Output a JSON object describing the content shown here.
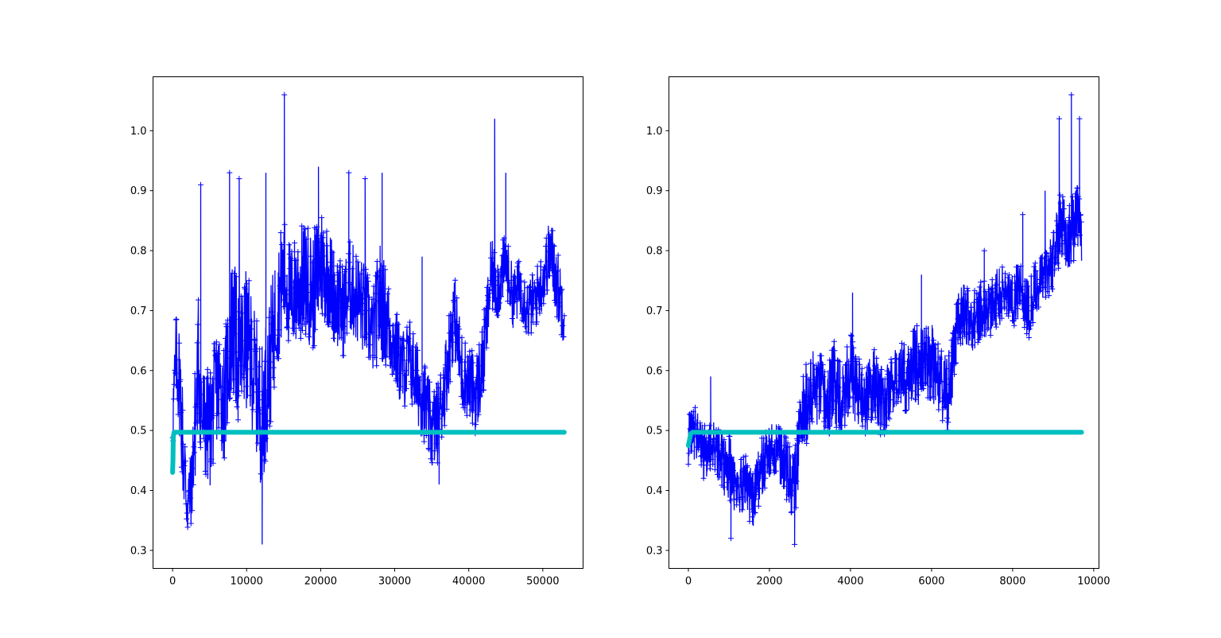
{
  "colors": {
    "series_color": "#0000ff",
    "reference_color": "#00bfbf",
    "axes_color": "#000000",
    "background": "#ffffff"
  },
  "chart_data": [
    {
      "type": "line",
      "title": "",
      "xlabel": "",
      "ylabel": "",
      "xlim": [
        -2640,
        55440
      ],
      "ylim": [
        0.27,
        1.09
      ],
      "grid": false,
      "xticks": [
        0,
        10000,
        20000,
        30000,
        40000,
        50000
      ],
      "xtick_labels": [
        "0",
        "10000",
        "20000",
        "30000",
        "40000",
        "50000"
      ],
      "yticks": [
        0.3,
        0.4,
        0.5,
        0.6,
        0.7,
        0.8,
        0.9,
        1.0
      ],
      "ytick_labels": [
        "0.3",
        "0.4",
        "0.5",
        "0.6",
        "0.7",
        "0.8",
        "0.9",
        "1.0"
      ],
      "series": [
        {
          "style": "line-with-plus-markers",
          "color": "#0000ff",
          "x": [
            0,
            500,
            1000,
            1500,
            2000,
            2500,
            3000,
            3500,
            4000,
            5000,
            6000,
            7000,
            8000,
            9000,
            10000,
            11000,
            12000,
            13000,
            14000,
            15000,
            16000,
            17000,
            18000,
            19000,
            20000,
            21000,
            22000,
            23000,
            24000,
            25000,
            26000,
            27000,
            28000,
            29000,
            30000,
            31000,
            32000,
            33000,
            34000,
            35000,
            36000,
            37000,
            38000,
            39000,
            40000,
            41000,
            42000,
            43000,
            44000,
            45000,
            46000,
            47000,
            48000,
            49000,
            50000,
            51000,
            52000,
            52900
          ],
          "y": [
            0.52,
            0.62,
            0.58,
            0.45,
            0.38,
            0.4,
            0.5,
            0.62,
            0.52,
            0.5,
            0.58,
            0.55,
            0.68,
            0.62,
            0.65,
            0.6,
            0.52,
            0.6,
            0.7,
            0.76,
            0.72,
            0.74,
            0.75,
            0.73,
            0.78,
            0.76,
            0.72,
            0.7,
            0.74,
            0.72,
            0.7,
            0.66,
            0.72,
            0.68,
            0.64,
            0.6,
            0.62,
            0.58,
            0.55,
            0.5,
            0.52,
            0.6,
            0.7,
            0.6,
            0.58,
            0.56,
            0.62,
            0.76,
            0.74,
            0.78,
            0.72,
            0.74,
            0.7,
            0.72,
            0.75,
            0.8,
            0.74,
            0.7
          ],
          "spread": [
            0.07,
            0.08,
            0.1,
            0.1,
            0.07,
            0.06,
            0.1,
            0.12,
            0.1,
            0.1,
            0.1,
            0.1,
            0.12,
            0.12,
            0.12,
            0.11,
            0.12,
            0.12,
            0.1,
            0.1,
            0.09,
            0.1,
            0.1,
            0.1,
            0.1,
            0.09,
            0.08,
            0.08,
            0.08,
            0.08,
            0.08,
            0.07,
            0.1,
            0.08,
            0.07,
            0.07,
            0.07,
            0.07,
            0.07,
            0.07,
            0.07,
            0.07,
            0.07,
            0.07,
            0.06,
            0.07,
            0.07,
            0.06,
            0.06,
            0.05,
            0.05,
            0.05,
            0.05,
            0.05,
            0.05,
            0.06,
            0.06,
            0.06
          ],
          "spikes": [
            [
              3800,
              0.91
            ],
            [
              7700,
              0.93
            ],
            [
              9000,
              0.92
            ],
            [
              12100,
              0.31
            ],
            [
              12600,
              0.93
            ],
            [
              15100,
              1.06
            ],
            [
              19700,
              0.94
            ],
            [
              23800,
              0.93
            ],
            [
              26000,
              0.92
            ],
            [
              28300,
              0.93
            ],
            [
              33700,
              0.79
            ],
            [
              36000,
              0.41
            ],
            [
              43500,
              1.02
            ],
            [
              45000,
              0.93
            ]
          ]
        },
        {
          "style": "thick-line",
          "color": "#00bfbf",
          "x": [
            0,
            50,
            100,
            200,
            500,
            52900
          ],
          "y": [
            0.43,
            0.45,
            0.49,
            0.497,
            0.497,
            0.497
          ]
        }
      ]
    },
    {
      "type": "line",
      "title": "",
      "xlabel": "",
      "ylabel": "",
      "xlim": [
        -480,
        10130
      ],
      "ylim": [
        0.27,
        1.09
      ],
      "grid": false,
      "xticks": [
        0,
        2000,
        4000,
        6000,
        8000,
        10000
      ],
      "xtick_labels": [
        "0",
        "2000",
        "4000",
        "6000",
        "8000",
        "10000"
      ],
      "yticks": [
        0.3,
        0.4,
        0.5,
        0.6,
        0.7,
        0.8,
        0.9,
        1.0
      ],
      "ytick_labels": [
        "0.3",
        "0.4",
        "0.5",
        "0.6",
        "0.7",
        "0.8",
        "0.9",
        "1.0"
      ],
      "series": [
        {
          "style": "line-with-plus-markers",
          "color": "#0000ff",
          "x": [
            0,
            200,
            400,
            600,
            800,
            1000,
            1200,
            1400,
            1600,
            1800,
            2000,
            2200,
            2400,
            2600,
            2800,
            3000,
            3200,
            3400,
            3600,
            3800,
            4000,
            4200,
            4400,
            4600,
            4800,
            5000,
            5200,
            5400,
            5600,
            5800,
            6000,
            6200,
            6400,
            6600,
            6800,
            7000,
            7200,
            7400,
            7600,
            7800,
            8000,
            8200,
            8400,
            8600,
            8800,
            9000,
            9200,
            9400,
            9600,
            9700
          ],
          "y": [
            0.48,
            0.5,
            0.46,
            0.48,
            0.45,
            0.44,
            0.4,
            0.42,
            0.38,
            0.44,
            0.46,
            0.47,
            0.44,
            0.4,
            0.52,
            0.56,
            0.57,
            0.54,
            0.58,
            0.56,
            0.6,
            0.56,
            0.55,
            0.58,
            0.54,
            0.57,
            0.6,
            0.58,
            0.62,
            0.6,
            0.62,
            0.58,
            0.55,
            0.66,
            0.7,
            0.68,
            0.7,
            0.7,
            0.72,
            0.73,
            0.72,
            0.74,
            0.7,
            0.74,
            0.76,
            0.78,
            0.85,
            0.82,
            0.86,
            0.84
          ],
          "spread": [
            0.05,
            0.05,
            0.05,
            0.05,
            0.05,
            0.06,
            0.05,
            0.05,
            0.05,
            0.05,
            0.05,
            0.05,
            0.05,
            0.06,
            0.07,
            0.07,
            0.07,
            0.07,
            0.07,
            0.07,
            0.07,
            0.06,
            0.06,
            0.06,
            0.06,
            0.05,
            0.05,
            0.06,
            0.07,
            0.07,
            0.07,
            0.06,
            0.07,
            0.06,
            0.05,
            0.05,
            0.05,
            0.05,
            0.05,
            0.05,
            0.05,
            0.05,
            0.05,
            0.05,
            0.05,
            0.05,
            0.06,
            0.06,
            0.06,
            0.06
          ],
          "spikes": [
            [
              550,
              0.59
            ],
            [
              1050,
              0.32
            ],
            [
              2620,
              0.31
            ],
            [
              4050,
              0.73
            ],
            [
              5750,
              0.76
            ],
            [
              7300,
              0.8
            ],
            [
              8250,
              0.86
            ],
            [
              8800,
              0.9
            ],
            [
              9150,
              1.02
            ],
            [
              9450,
              1.06
            ],
            [
              9650,
              1.02
            ]
          ]
        },
        {
          "style": "thick-line",
          "color": "#00bfbf",
          "x": [
            0,
            30,
            60,
            100,
            9700
          ],
          "y": [
            0.475,
            0.485,
            0.495,
            0.497,
            0.497
          ]
        }
      ]
    }
  ]
}
